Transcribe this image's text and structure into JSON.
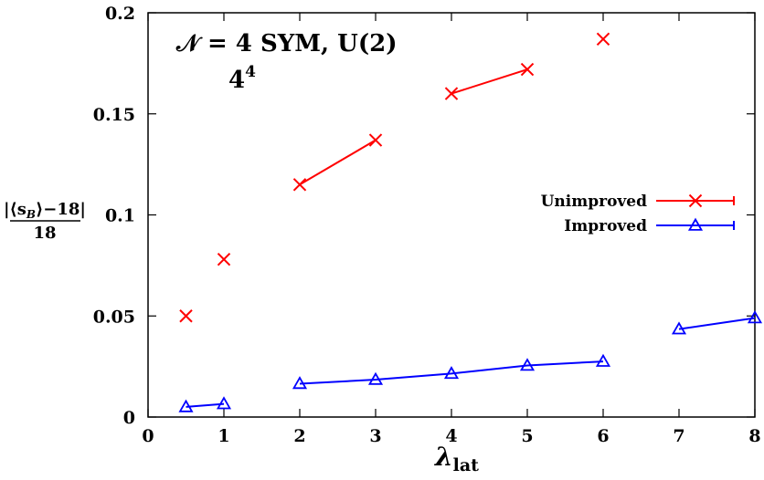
{
  "chart_data": {
    "type": "line",
    "annotation": {
      "line1": "𝒩 = 4 SYM, U(2)",
      "line2_base": "4",
      "line2_sup": "4"
    },
    "xlabel": {
      "base": "λ",
      "sub": "lat"
    },
    "ylabel": {
      "numerator": "|⟨s",
      "numerator_sub": "B",
      "numerator_tail": "⟩−18|",
      "denominator": "18"
    },
    "xlim": [
      0,
      8
    ],
    "ylim": [
      0,
      0.2
    ],
    "xticks": [
      0,
      1,
      2,
      3,
      4,
      5,
      6,
      7,
      8
    ],
    "xtick_labels": [
      "0",
      "1",
      "2",
      "3",
      "4",
      "5",
      "6",
      "7",
      "8"
    ],
    "yticks": [
      0,
      0.05,
      0.1,
      0.15,
      0.2
    ],
    "ytick_labels": [
      "0",
      "0.05",
      "0.1",
      "0.15",
      "0.2"
    ],
    "grid": false,
    "legend_position": "right",
    "series": [
      {
        "name": "Unimproved",
        "color": "#ff0000",
        "marker": "x",
        "x": [
          0.5,
          1,
          2,
          3,
          4,
          5,
          6
        ],
        "y": [
          0.05,
          0.078,
          0.115,
          0.137,
          0.16,
          0.172,
          0.187
        ],
        "segments": [
          [
            0
          ],
          [
            1
          ],
          [
            2,
            3
          ],
          [
            4,
            5
          ],
          [
            6
          ]
        ]
      },
      {
        "name": "Improved",
        "color": "#0000ff",
        "marker": "triangle",
        "x": [
          0.5,
          1,
          2,
          3,
          4,
          5,
          6,
          7,
          8
        ],
        "y": [
          0.005,
          0.0065,
          0.0165,
          0.0185,
          0.0215,
          0.0255,
          0.0275,
          0.0435,
          0.049
        ],
        "segments": [
          [
            0,
            1
          ],
          [
            2,
            3,
            4,
            5,
            6
          ],
          [
            7,
            8
          ]
        ]
      }
    ]
  }
}
